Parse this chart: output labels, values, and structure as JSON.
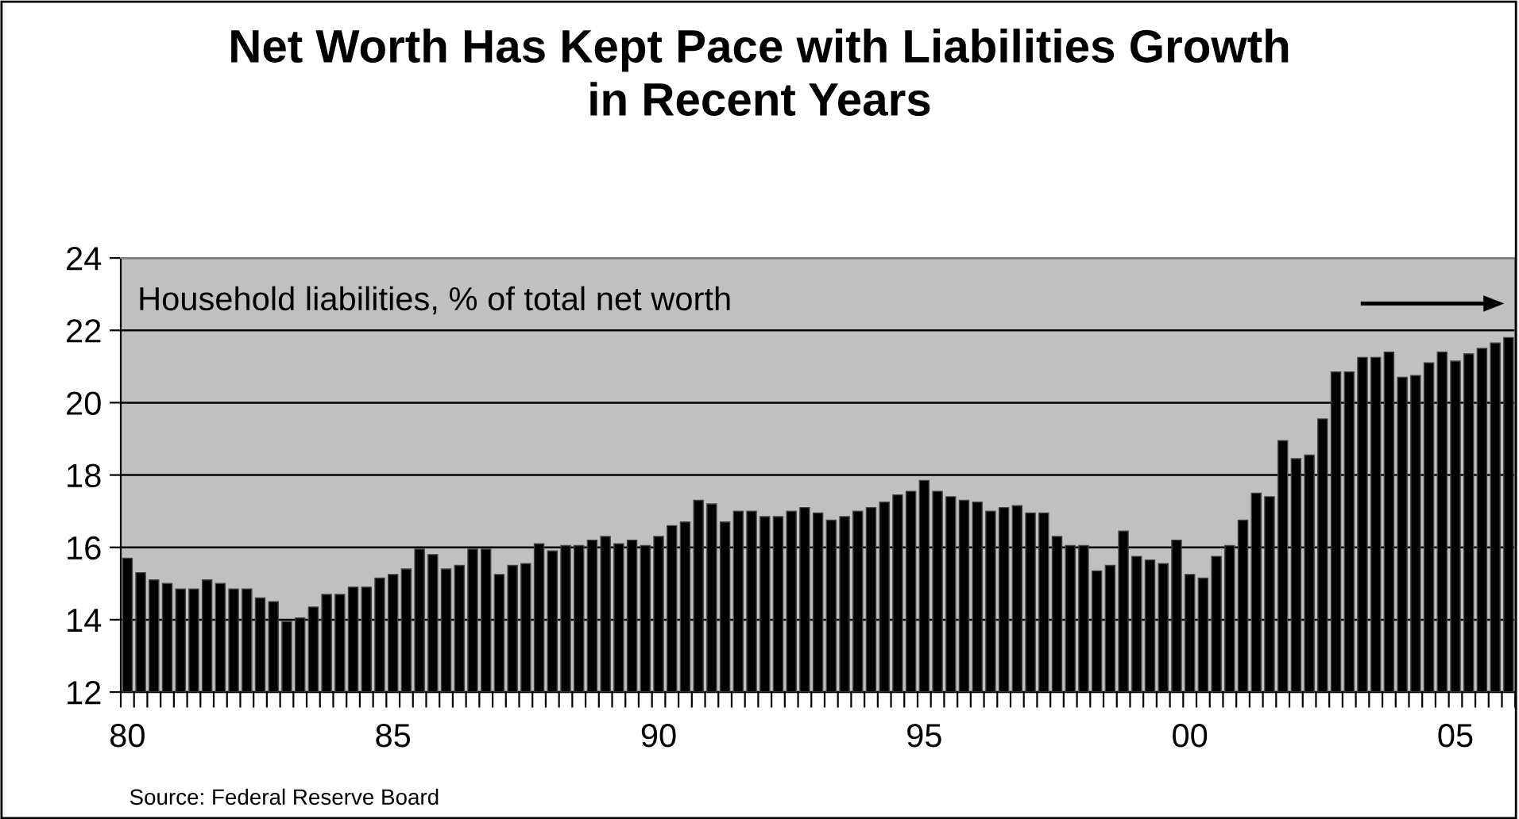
{
  "chart_data": {
    "type": "bar",
    "title": "Net Worth Has Kept Pace with Liabilities Growth\nin Recent Years",
    "categories": [
      "80",
      null,
      null,
      null,
      null,
      null,
      null,
      null,
      null,
      null,
      null,
      null,
      null,
      null,
      null,
      null,
      null,
      null,
      null,
      null,
      "85",
      null,
      null,
      null,
      null,
      null,
      null,
      null,
      null,
      null,
      null,
      null,
      null,
      null,
      null,
      null,
      null,
      null,
      null,
      null,
      "90",
      null,
      null,
      null,
      null,
      null,
      null,
      null,
      null,
      null,
      null,
      null,
      null,
      null,
      null,
      null,
      null,
      null,
      null,
      null,
      "95",
      null,
      null,
      null,
      null,
      null,
      null,
      null,
      null,
      null,
      null,
      null,
      null,
      null,
      null,
      null,
      null,
      null,
      null,
      null,
      "00",
      null,
      null,
      null,
      null,
      null,
      null,
      null,
      null,
      null,
      null,
      null,
      null,
      null,
      null,
      null,
      null,
      null,
      null,
      null,
      "05",
      null,
      null,
      null,
      null
    ],
    "values": [
      15.7,
      15.3,
      15.1,
      15.0,
      14.85,
      14.85,
      15.1,
      15.0,
      14.85,
      14.85,
      14.6,
      14.5,
      13.95,
      14.05,
      14.35,
      14.7,
      14.7,
      14.9,
      14.9,
      15.15,
      15.25,
      15.4,
      15.95,
      15.8,
      15.4,
      15.5,
      15.95,
      15.95,
      15.25,
      15.5,
      15.55,
      16.1,
      15.9,
      16.05,
      16.05,
      16.2,
      16.3,
      16.1,
      16.2,
      16.05,
      16.3,
      16.6,
      16.7,
      17.3,
      17.2,
      16.7,
      17.0,
      17.0,
      16.85,
      16.85,
      17.0,
      17.1,
      16.95,
      16.75,
      16.85,
      17.0,
      17.1,
      17.25,
      17.45,
      17.55,
      17.85,
      17.55,
      17.4,
      17.3,
      17.25,
      17.0,
      17.1,
      17.15,
      16.95,
      16.95,
      16.3,
      16.05,
      16.05,
      15.35,
      15.5,
      16.45,
      15.75,
      15.65,
      15.55,
      16.2,
      15.25,
      15.15,
      15.75,
      16.05,
      16.75,
      17.5,
      17.4,
      18.95,
      18.45,
      18.55,
      19.55,
      20.85,
      20.85,
      21.25,
      21.25,
      21.4,
      20.7,
      20.75,
      21.1,
      21.4,
      21.15,
      21.35,
      21.5,
      21.65,
      21.8
    ],
    "color": "#000000",
    "ylim": [
      12,
      24
    ],
    "yticks": [
      12,
      14,
      16,
      18,
      20,
      22,
      24
    ],
    "grid": "y",
    "annotations": [
      "Household liabilities, % of total net worth",
      "Source: Federal Reserve Board"
    ]
  }
}
